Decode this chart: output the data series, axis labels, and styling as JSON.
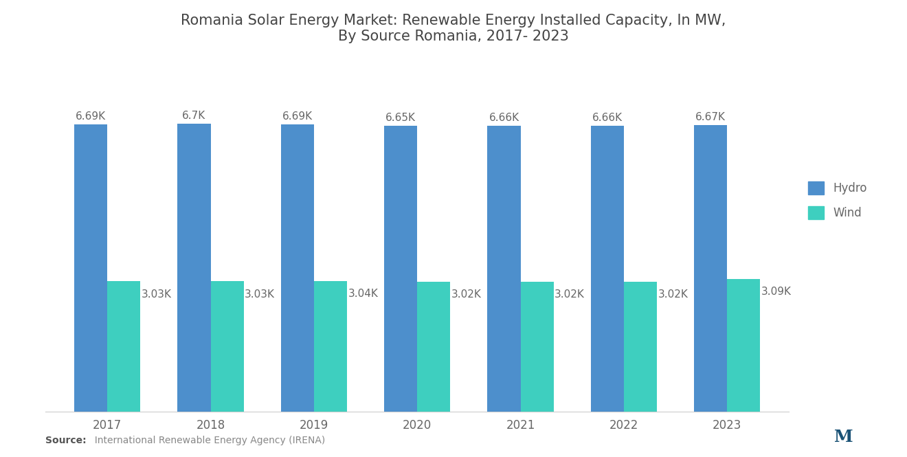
{
  "title": "Romania Solar Energy Market: Renewable Energy Installed Capacity, In MW,\nBy Source Romania, 2017- 2023",
  "years": [
    "2017",
    "2018",
    "2019",
    "2020",
    "2021",
    "2022",
    "2023"
  ],
  "hydro_values": [
    6690,
    6700,
    6690,
    6650,
    6660,
    6660,
    6670
  ],
  "wind_values": [
    3030,
    3030,
    3040,
    3020,
    3020,
    3020,
    3090
  ],
  "hydro_labels": [
    "6.69K",
    "6.7K",
    "6.69K",
    "6.65K",
    "6.66K",
    "6.66K",
    "6.67K"
  ],
  "wind_labels": [
    "3.03K",
    "3.03K",
    "3.04K",
    "3.02K",
    "3.02K",
    "3.02K",
    "3.09K"
  ],
  "hydro_color": "#4d8fcc",
  "wind_color": "#3ecfbf",
  "legend_labels": [
    "Hydro",
    "Wind"
  ],
  "source_bold": "Source:",
  "source_rest": "  International Renewable Energy Agency (IRENA)",
  "background_color": "#ffffff",
  "title_fontsize": 15,
  "label_fontsize": 11,
  "tick_fontsize": 12,
  "bar_width": 0.32,
  "ylim": [
    0,
    8200
  ]
}
